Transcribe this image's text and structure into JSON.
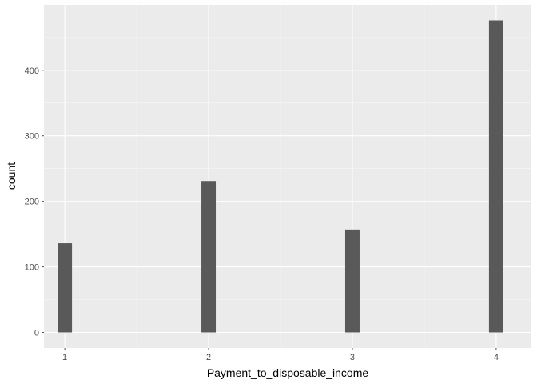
{
  "chart_data": {
    "type": "bar",
    "title": "",
    "xlabel": "Payment_to_disposable_income",
    "ylabel": "count",
    "x": [
      1,
      2,
      3,
      4
    ],
    "values": [
      136,
      231,
      157,
      476
    ],
    "x_ticks": [
      "1",
      "2",
      "3",
      "4"
    ],
    "y_ticks": [
      "0",
      "100",
      "200",
      "300",
      "400"
    ],
    "xlim": [
      0.855,
      4.245
    ],
    "ylim": [
      -23.8,
      499.8
    ],
    "grid": true,
    "legend": "none",
    "colors": {
      "bar": "#595959",
      "panel": "#ebebeb",
      "grid_major": "#ffffff",
      "grid_minor": "#f5f5f5",
      "tick": "#4d4d4d"
    }
  }
}
